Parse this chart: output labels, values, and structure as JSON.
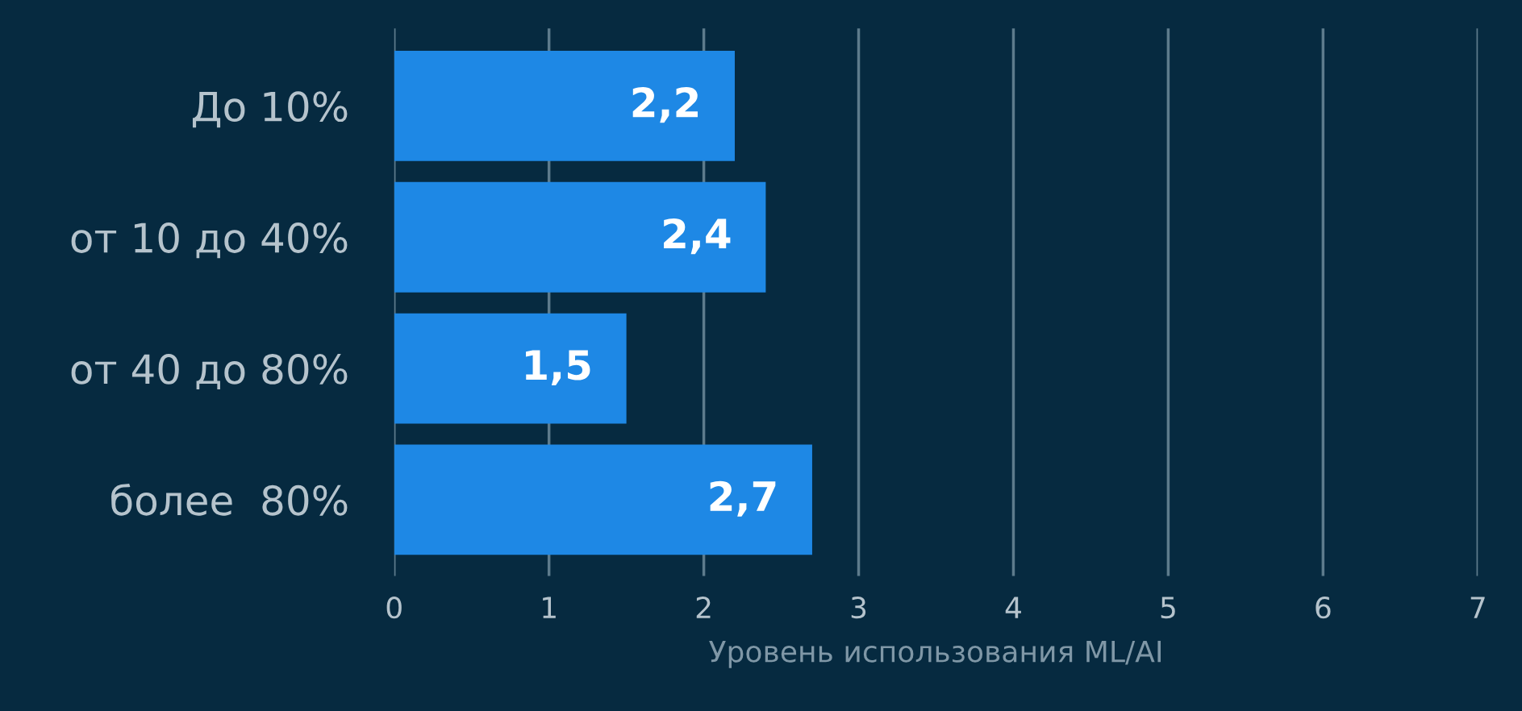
{
  "chart_data": {
    "type": "bar",
    "orientation": "horizontal",
    "categories": [
      "До 10%",
      "от 10 до 40%",
      "от 40 до 80%",
      "более  80%"
    ],
    "values": [
      2.2,
      2.4,
      1.5,
      2.7
    ],
    "value_labels": [
      "2,2",
      "2,4",
      "1,5",
      "2,7"
    ],
    "color": "#1e88e5",
    "xlim": [
      0,
      7
    ],
    "xticks": [
      0,
      1,
      2,
      3,
      4,
      5,
      6,
      7
    ],
    "xlabel": "Уровень использования ML/AI",
    "grid": "x"
  }
}
